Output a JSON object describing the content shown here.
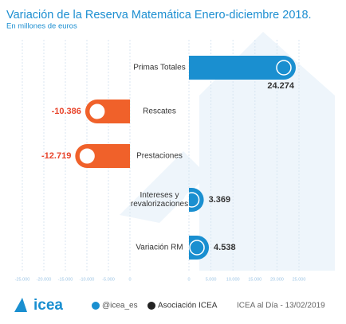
{
  "chart_data": {
    "type": "diverging-bar",
    "title": "Variación de la Reserva Matemática Enero-diciembre 2018.",
    "subtitle": "En millones de euros",
    "categories": [
      "Primas Totales",
      "Rescates",
      "Prestaciones",
      "Intereses y\nrevalorizaciones",
      "Variación RM"
    ],
    "values": [
      24274,
      -10386,
      -12719,
      3369,
      4538
    ],
    "value_labels": [
      "24.274",
      "-10.386",
      "-12.719",
      "3.369",
      "4.538"
    ],
    "positive_color": "#1a8fd0",
    "negative_color": "#f0612a",
    "xlim": [
      -25000,
      25000
    ],
    "xticks": [
      {
        "value": -25000,
        "label": "-25.000"
      },
      {
        "value": -20000,
        "label": "-20.000"
      },
      {
        "value": -15000,
        "label": "-15.000"
      },
      {
        "value": -10000,
        "label": "-10.000"
      },
      {
        "value": -5000,
        "label": "-5.000"
      },
      0,
      0,
      {
        "value": 5000,
        "label": "5.000"
      },
      {
        "value": 10000,
        "label": "10.000"
      },
      {
        "value": 15000,
        "label": "15.000"
      },
      {
        "value": 20000,
        "label": "20.000"
      },
      {
        "value": 25000,
        "label": "25.000"
      }
    ],
    "grid": true
  },
  "footer": {
    "logo": "icea",
    "twitter": "@icea_es",
    "linkedin": "Asociación ICEA",
    "source": "ICEA al Día - 13/02/2019"
  }
}
